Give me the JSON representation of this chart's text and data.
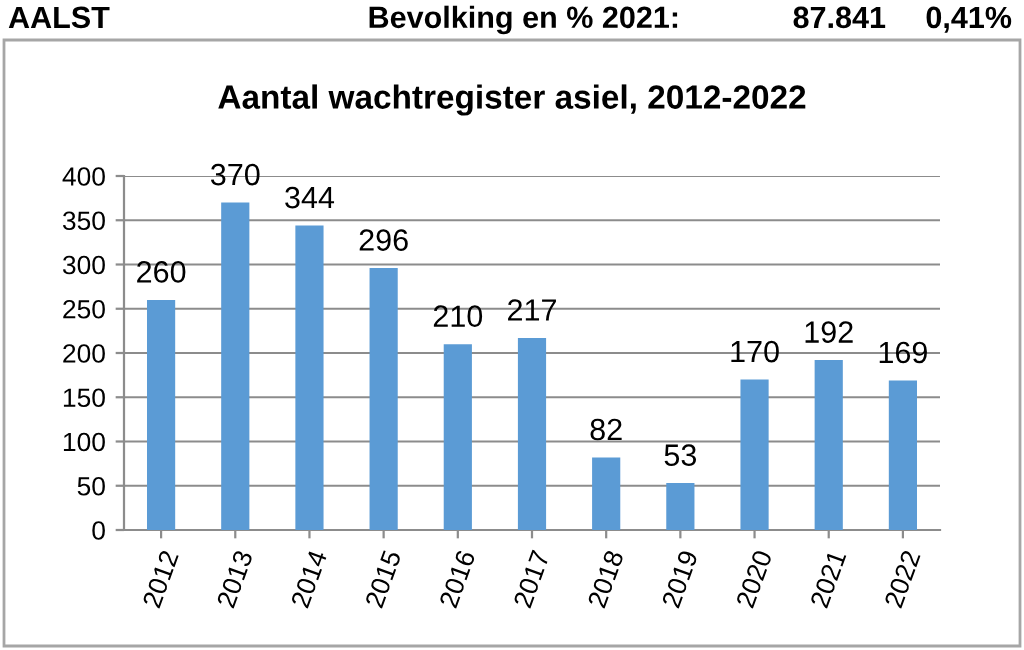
{
  "chart_data": {
    "type": "bar",
    "title": "Aantal wachtregister asiel, 2012-2022",
    "annotations": [
      "AALST",
      "Bevolking en % 2021:",
      "87.841",
      "0,41%"
    ],
    "categories": [
      "2012",
      "2013",
      "2014",
      "2015",
      "2016",
      "2017",
      "2018",
      "2019",
      "2020",
      "2021",
      "2022"
    ],
    "values": [
      260,
      370,
      344,
      296,
      210,
      217,
      82,
      53,
      170,
      192,
      169
    ],
    "color": "#5b9bd5",
    "ylim": [
      0,
      400
    ],
    "yticks": [
      0,
      50,
      100,
      150,
      200,
      250,
      300,
      350,
      400
    ],
    "grid": "y",
    "data_labels": true
  }
}
